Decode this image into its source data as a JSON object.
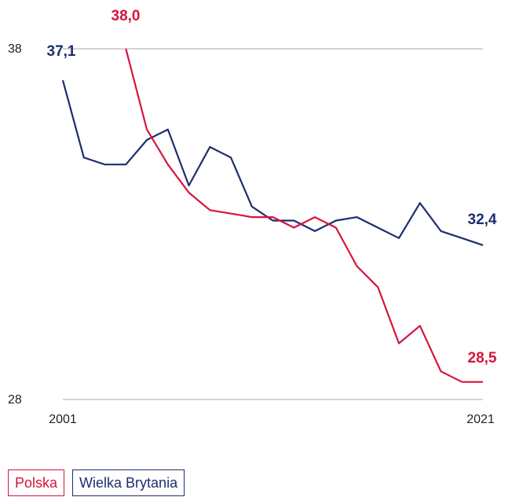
{
  "chart_data": {
    "type": "line",
    "title": "",
    "xlabel": "",
    "ylabel": "",
    "x": [
      2001,
      2002,
      2003,
      2004,
      2005,
      2006,
      2007,
      2008,
      2009,
      2010,
      2011,
      2012,
      2013,
      2014,
      2015,
      2016,
      2017,
      2018,
      2019,
      2020,
      2021
    ],
    "xlim": [
      2001,
      2021
    ],
    "ylim": [
      28,
      38
    ],
    "x_ticks": [
      "2001",
      "2021"
    ],
    "y_ticks": [
      "38",
      "28"
    ],
    "grid": "horizontal lines at 38 and 28",
    "legend_position": "bottom-left",
    "series": [
      {
        "name": "Polska",
        "color": "#d7143c",
        "values": [
          null,
          null,
          null,
          38.0,
          35.7,
          34.7,
          33.9,
          33.4,
          33.3,
          33.2,
          33.2,
          32.9,
          33.2,
          32.9,
          31.8,
          31.2,
          29.6,
          30.1,
          28.8,
          28.5,
          28.5
        ],
        "start_label": "38,0",
        "end_label": "28,5"
      },
      {
        "name": "Wielka Brytania",
        "color": "#1e2d6e",
        "values": [
          37.1,
          34.9,
          34.7,
          34.7,
          35.4,
          35.7,
          34.1,
          35.2,
          34.9,
          33.5,
          33.1,
          33.1,
          32.8,
          33.1,
          33.2,
          32.9,
          32.6,
          33.6,
          32.8,
          32.6,
          32.4
        ],
        "start_label": "37,1",
        "end_label": "32,4"
      }
    ]
  }
}
